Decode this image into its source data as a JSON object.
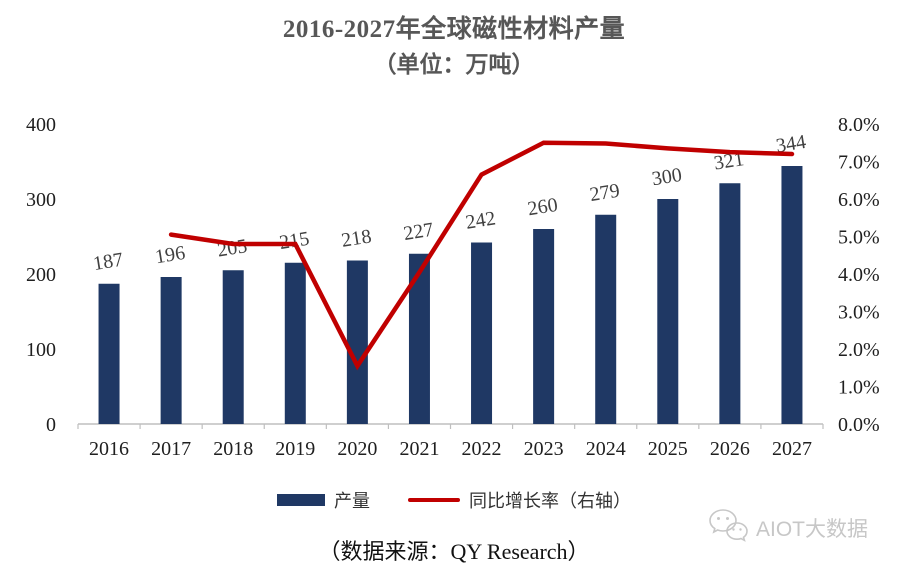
{
  "title": {
    "line1": "2016-2027年全球磁性材料产量",
    "line2": "（单位：万吨）"
  },
  "source_caption": "（数据来源：QY Research）",
  "watermark": {
    "icon": "wechat-icon",
    "label": "AIOT大数据"
  },
  "legend": {
    "position": "bottom",
    "items": [
      {
        "label": "产量",
        "type": "bar",
        "color": "#1F3864"
      },
      {
        "label": "同比增长率（右轴）",
        "type": "line",
        "color": "#C00000"
      }
    ]
  },
  "chart_data": {
    "type": "bar",
    "grid": false,
    "categories": [
      "2016",
      "2017",
      "2018",
      "2019",
      "2020",
      "2021",
      "2022",
      "2023",
      "2024",
      "2025",
      "2026",
      "2027"
    ],
    "series": [
      {
        "name": "产量",
        "type": "bar",
        "axis": "left",
        "color": "#1F3864",
        "values": [
          187,
          196,
          205,
          215,
          218,
          227,
          242,
          260,
          279,
          300,
          321,
          344
        ],
        "labels": [
          "187",
          "196",
          "205",
          "215",
          "218",
          "227",
          "242",
          "260",
          "279",
          "300",
          "321",
          "344"
        ]
      },
      {
        "name": "同比增长率（右轴）",
        "type": "line",
        "axis": "right",
        "color": "#C00000",
        "values_percent": [
          null,
          5.05,
          4.8,
          4.8,
          1.55,
          4.05,
          6.65,
          7.5,
          7.48,
          7.35,
          7.25,
          7.2
        ]
      }
    ],
    "left_axis": {
      "min": 0,
      "max": 400,
      "step": 100,
      "ticks": [
        "0",
        "100",
        "200",
        "300",
        "400"
      ]
    },
    "right_axis": {
      "min": 0,
      "max": 8,
      "step": 1,
      "ticks": [
        "0.0%",
        "1.0%",
        "2.0%",
        "3.0%",
        "4.0%",
        "5.0%",
        "6.0%",
        "7.0%",
        "8.0%"
      ]
    }
  },
  "colors": {
    "bar": "#1F3864",
    "line": "#C00000",
    "axis": "#BFBFBF",
    "value_label": "#404040",
    "tick_label": "#1f1f1f",
    "title": "#575757",
    "watermark": "#c7c7c7"
  }
}
